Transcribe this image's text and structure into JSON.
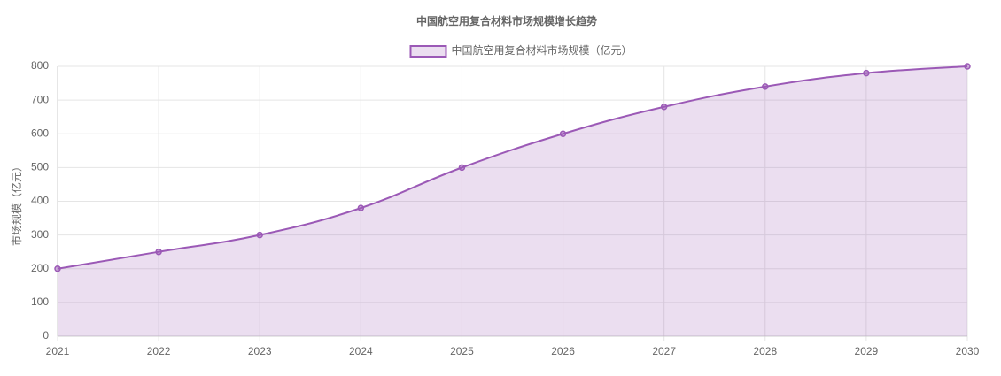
{
  "chart_data": {
    "type": "line",
    "title": "中国航空用复合材料市场规模增长趋势",
    "ylabel": "市场规模（亿元）",
    "categories": [
      "2021",
      "2022",
      "2023",
      "2024",
      "2025",
      "2026",
      "2027",
      "2028",
      "2029",
      "2030"
    ],
    "series": [
      {
        "name": "中国航空用复合材料市场规模（亿元）",
        "color": "#9b59b6",
        "fill": true,
        "values": [
          200,
          250,
          300,
          380,
          500,
          600,
          680,
          740,
          780,
          800
        ]
      }
    ],
    "ylim": [
      0,
      800
    ],
    "yticks": [
      0,
      100,
      200,
      300,
      400,
      500,
      600,
      700,
      800
    ],
    "grid": true,
    "legend": "top"
  }
}
